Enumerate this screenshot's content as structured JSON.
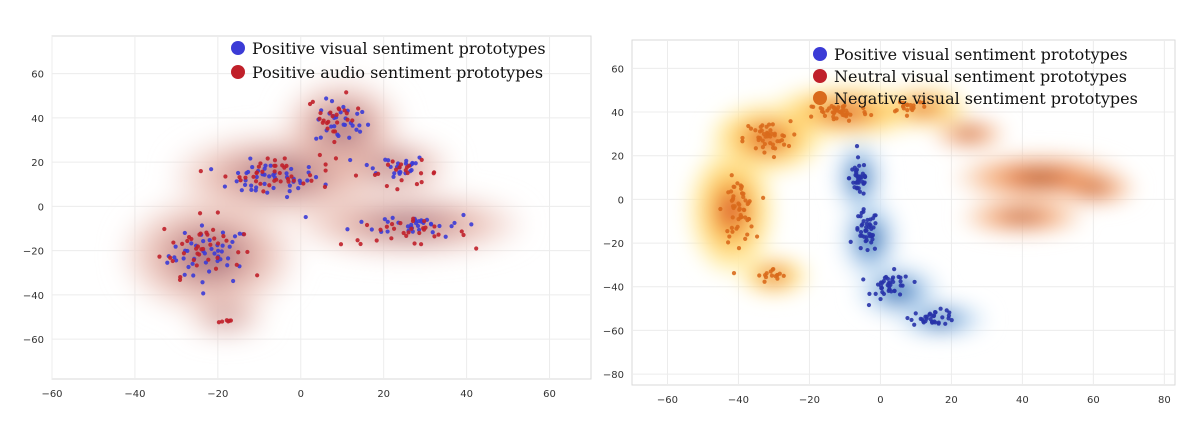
{
  "chart_data": [
    {
      "type": "scatter",
      "title": "",
      "xlabel": "",
      "ylabel": "",
      "xlim": [
        -60,
        70
      ],
      "ylim": [
        -78,
        77
      ],
      "xticks": [
        -60,
        -40,
        -20,
        0,
        20,
        40,
        60
      ],
      "yticks": [
        -60,
        -40,
        -20,
        0,
        20,
        40,
        60
      ],
      "xtick_labels": [
        "−60",
        "−40",
        "−20",
        "0",
        "20",
        "40",
        "60"
      ],
      "ytick_labels": [
        "−60",
        "−40",
        "−20",
        "0",
        "20",
        "40",
        "60"
      ],
      "grid": true,
      "legend_position": "top-right",
      "series": [
        {
          "name": "Positive visual sentiment prototypes",
          "color": "#3b3bd6",
          "clusters": [
            {
              "center": [
                -22,
                -22
              ],
              "spread": [
                9,
                12
              ],
              "n": 45
            },
            {
              "center": [
                -8,
                12
              ],
              "spread": [
                12,
                7
              ],
              "n": 45
            },
            {
              "center": [
                10,
                38
              ],
              "spread": [
                6,
                9
              ],
              "n": 30
            },
            {
              "center": [
                22,
                18
              ],
              "spread": [
                8,
                5
              ],
              "n": 25
            },
            {
              "center": [
                28,
                -8
              ],
              "spread": [
                14,
                5
              ],
              "n": 35
            }
          ]
        },
        {
          "name": "Positive audio sentiment prototypes",
          "color": "#c0202a",
          "clusters": [
            {
              "center": [
                -24,
                -18
              ],
              "spread": [
                9,
                12
              ],
              "n": 40
            },
            {
              "center": [
                -5,
                15
              ],
              "spread": [
                12,
                7
              ],
              "n": 40
            },
            {
              "center": [
                8,
                40
              ],
              "spread": [
                6,
                9
              ],
              "n": 25
            },
            {
              "center": [
                25,
                15
              ],
              "spread": [
                8,
                5
              ],
              "n": 20
            },
            {
              "center": [
                25,
                -12
              ],
              "spread": [
                14,
                5
              ],
              "n": 30
            },
            {
              "center": [
                -18,
                -52
              ],
              "spread": [
                2,
                1
              ],
              "n": 6
            }
          ]
        }
      ],
      "density": [
        {
          "center": [
            -22,
            -22
          ],
          "spread": [
            16,
            20
          ],
          "weight": 1.0
        },
        {
          "center": [
            -5,
            14
          ],
          "spread": [
            20,
            14
          ],
          "weight": 1.0
        },
        {
          "center": [
            10,
            36
          ],
          "spread": [
            11,
            16
          ],
          "weight": 0.9
        },
        {
          "center": [
            26,
            -8
          ],
          "spread": [
            22,
            10
          ],
          "weight": 0.9
        },
        {
          "center": [
            22,
            18
          ],
          "spread": [
            12,
            9
          ],
          "weight": 0.6
        },
        {
          "center": [
            -18,
            -50
          ],
          "spread": [
            8,
            6
          ],
          "weight": 0.5
        }
      ]
    },
    {
      "type": "scatter",
      "title": "",
      "xlabel": "",
      "ylabel": "",
      "xlim": [
        -70,
        83
      ],
      "ylim": [
        -85,
        73
      ],
      "xticks": [
        -60,
        -40,
        -20,
        0,
        20,
        40,
        60,
        80
      ],
      "yticks": [
        -80,
        -60,
        -40,
        -20,
        0,
        20,
        40,
        60
      ],
      "xtick_labels": [
        "−60",
        "−40",
        "−20",
        "0",
        "20",
        "40",
        "60",
        "80"
      ],
      "ytick_labels": [
        "−80",
        "−60",
        "−40",
        "−20",
        "0",
        "20",
        "40",
        "60"
      ],
      "grid": true,
      "legend_position": "top-right",
      "series": [
        {
          "name": "Positive visual sentiment prototypes",
          "color": "#2833a8",
          "clusters": [
            {
              "center": [
                -6,
                10
              ],
              "spread": [
                2.5,
                8
              ],
              "n": 40
            },
            {
              "center": [
                -4,
                -15
              ],
              "spread": [
                3,
                9
              ],
              "n": 45
            },
            {
              "center": [
                3,
                -40
              ],
              "spread": [
                5,
                6
              ],
              "n": 40
            },
            {
              "center": [
                15,
                -54
              ],
              "spread": [
                6,
                3
              ],
              "n": 35
            }
          ]
        },
        {
          "name": "Neutral visual sentiment prototypes",
          "color": "#c0202a",
          "clusters": []
        },
        {
          "name": "Negative visual sentiment prototypes",
          "color": "#d96a1c",
          "clusters": [
            {
              "center": [
                -40,
                -5
              ],
              "spread": [
                4,
                13
              ],
              "n": 55
            },
            {
              "center": [
                -32,
                28
              ],
              "spread": [
                6,
                7
              ],
              "n": 45
            },
            {
              "center": [
                -12,
                40
              ],
              "spread": [
                8,
                4
              ],
              "n": 45
            },
            {
              "center": [
                8,
                43
              ],
              "spread": [
                5,
                3
              ],
              "n": 20
            },
            {
              "center": [
                -30,
                -35
              ],
              "spread": [
                4,
                3
              ],
              "n": 15
            }
          ]
        }
      ],
      "density": [
        {
          "kind": "warm",
          "center": [
            -42,
            -5
          ],
          "spread": [
            9,
            22
          ],
          "weight": 1.0
        },
        {
          "kind": "warm",
          "center": [
            -32,
            28
          ],
          "spread": [
            12,
            12
          ],
          "weight": 1.0
        },
        {
          "kind": "warm",
          "center": [
            -10,
            40
          ],
          "spread": [
            16,
            9
          ],
          "weight": 1.0
        },
        {
          "kind": "warm",
          "center": [
            12,
            42
          ],
          "spread": [
            10,
            7
          ],
          "weight": 0.8
        },
        {
          "kind": "warm",
          "center": [
            -30,
            -35
          ],
          "spread": [
            8,
            7
          ],
          "weight": 0.6
        },
        {
          "kind": "blue",
          "center": [
            -6,
            10
          ],
          "spread": [
            5,
            13
          ],
          "weight": 1.0
        },
        {
          "kind": "blue",
          "center": [
            -3,
            -18
          ],
          "spread": [
            6,
            14
          ],
          "weight": 1.0
        },
        {
          "kind": "blue",
          "center": [
            5,
            -42
          ],
          "spread": [
            9,
            9
          ],
          "weight": 0.9
        },
        {
          "kind": "blue",
          "center": [
            17,
            -55
          ],
          "spread": [
            10,
            6
          ],
          "weight": 0.8
        },
        {
          "kind": "orange",
          "center": [
            25,
            30
          ],
          "spread": [
            8,
            5
          ],
          "weight": 0.8
        },
        {
          "kind": "orange",
          "center": [
            45,
            10
          ],
          "spread": [
            18,
            8
          ],
          "weight": 1.0
        },
        {
          "kind": "orange",
          "center": [
            40,
            -8
          ],
          "spread": [
            14,
            6
          ],
          "weight": 0.7
        },
        {
          "kind": "orange",
          "center": [
            60,
            5
          ],
          "spread": [
            10,
            6
          ],
          "weight": 0.6
        }
      ]
    }
  ]
}
